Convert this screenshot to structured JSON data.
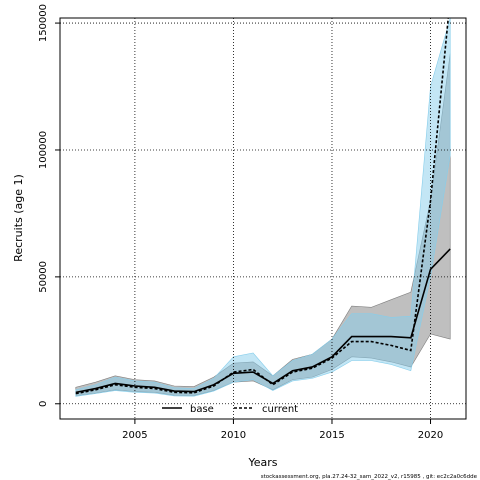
{
  "chart_data": {
    "type": "line",
    "xlabel": "Years",
    "ylabel": "Recruits (age 1)",
    "xlim": [
      2001.2,
      2021.8
    ],
    "ylim": [
      -6000,
      152000
    ],
    "xticks": [
      2005,
      2010,
      2015,
      2020
    ],
    "yticks": [
      0,
      50000,
      100000,
      150000
    ],
    "grid": true,
    "legend_position": "bottom",
    "footnote": "stockassessment.org, pla.27.24-32_sam_2022_v2, r15985 , git: ec2c2a0c6dde",
    "series": [
      {
        "name": "base",
        "style": "solid",
        "color": "#000000",
        "band_color": "#808080",
        "x": [
          2002,
          2003,
          2004,
          2005,
          2006,
          2007,
          2008,
          2009,
          2010,
          2011,
          2012,
          2013,
          2014,
          2015,
          2016,
          2017,
          2018,
          2019,
          2020,
          2021
        ],
        "y": [
          4500,
          6000,
          8000,
          7000,
          6500,
          5000,
          4800,
          7500,
          12000,
          12500,
          8000,
          13000,
          14500,
          18500,
          26500,
          26500,
          26500,
          26000,
          53000,
          61000
        ],
        "lower": [
          3200,
          4200,
          5500,
          4800,
          4500,
          3400,
          3300,
          5200,
          8500,
          9000,
          5500,
          9500,
          10500,
          13500,
          18500,
          18000,
          16500,
          14500,
          27500,
          25500
        ],
        "upper": [
          6500,
          8500,
          11000,
          9500,
          9000,
          7000,
          6800,
          10500,
          16000,
          16500,
          11000,
          17500,
          19500,
          25500,
          38500,
          38000,
          41000,
          44000,
          80000,
          138000
        ]
      },
      {
        "name": "current",
        "style": "dashed",
        "color": "#000000",
        "band_color": "#87ceeb",
        "x": [
          2002,
          2003,
          2004,
          2005,
          2006,
          2007,
          2008,
          2009,
          2010,
          2011,
          2012,
          2013,
          2014,
          2015,
          2016,
          2017,
          2018,
          2019,
          2020,
          2021
        ],
        "y": [
          4000,
          5500,
          7500,
          6500,
          6000,
          4500,
          4300,
          7000,
          12500,
          13500,
          7500,
          12500,
          14000,
          18000,
          24500,
          24500,
          23000,
          21000,
          80000,
          160000
        ],
        "lower": [
          2900,
          4000,
          5200,
          4500,
          4200,
          3100,
          3000,
          5000,
          8500,
          9500,
          5200,
          9000,
          10000,
          12500,
          17000,
          17000,
          15500,
          13000,
          50000,
          98000
        ],
        "upper": [
          5500,
          7500,
          10500,
          9000,
          8500,
          6300,
          6000,
          10000,
          18500,
          20000,
          11000,
          17000,
          19500,
          25500,
          35500,
          35500,
          34000,
          34500,
          125000,
          152000
        ]
      }
    ]
  }
}
